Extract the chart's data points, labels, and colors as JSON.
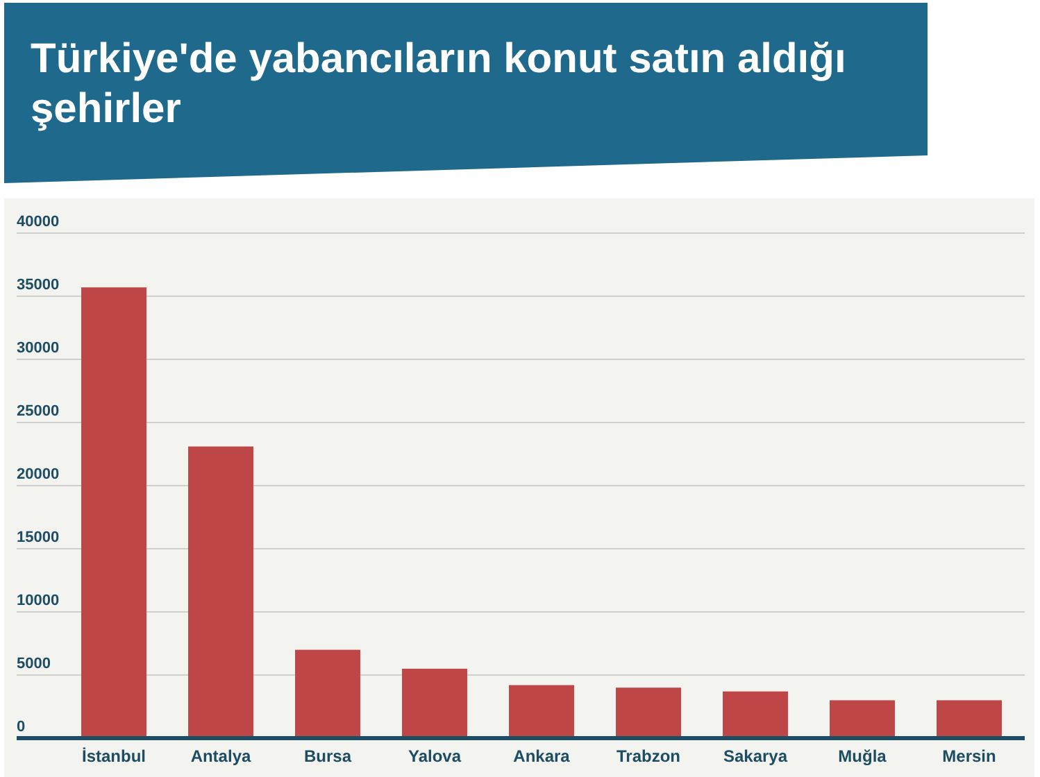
{
  "chart_data": {
    "type": "bar",
    "title": "Türkiye'de yabancıların konut satın aldığı şehirler",
    "categories": [
      "İstanbul",
      "Antalya",
      "Bursa",
      "Yalova",
      "Ankara",
      "Trabzon",
      "Sakarya",
      "Muğla",
      "Mersin"
    ],
    "values": [
      35700,
      23100,
      7000,
      5500,
      4200,
      4000,
      3700,
      3000,
      3000
    ],
    "color": "#bf4646",
    "ylim": [
      0,
      40000
    ],
    "yticks": [
      0,
      5000,
      10000,
      15000,
      20000,
      25000,
      30000,
      35000,
      40000
    ],
    "grid": "y"
  }
}
